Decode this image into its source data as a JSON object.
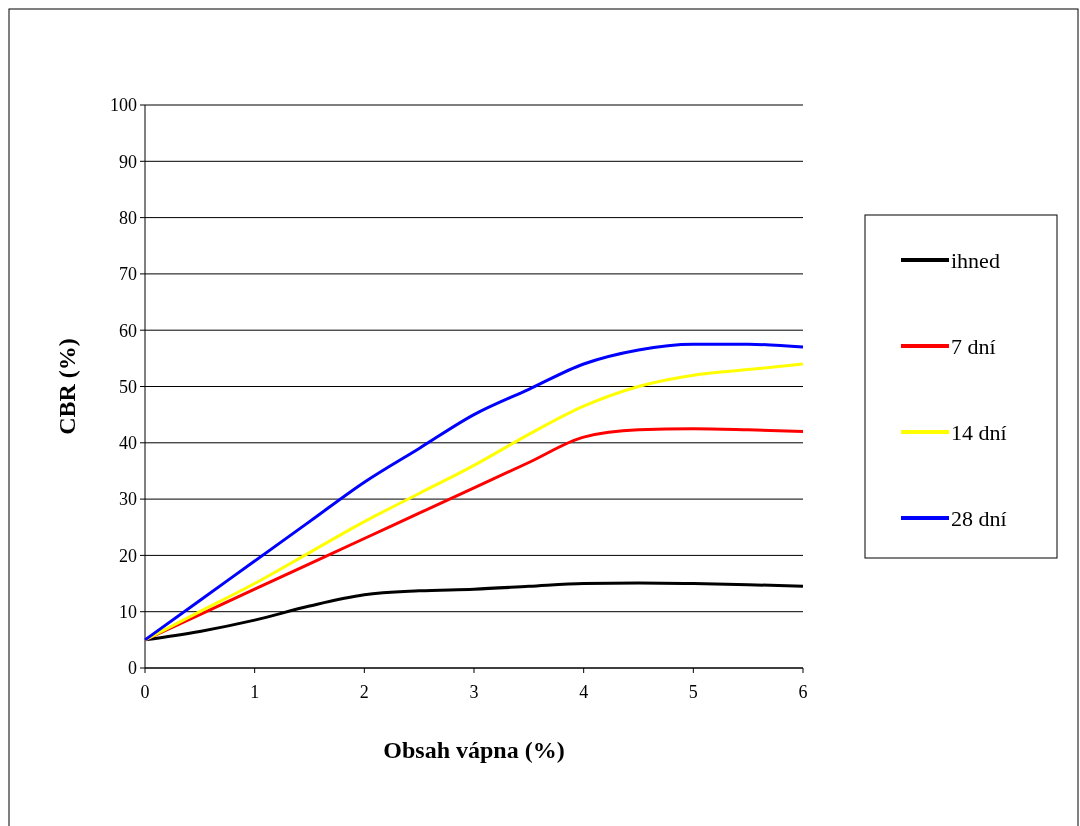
{
  "chart_data": {
    "type": "line",
    "xlabel": "Obsah vápna (%)",
    "ylabel": "CBR (%)",
    "x": [
      0,
      0.5,
      1,
      1.5,
      2,
      2.5,
      3,
      3.5,
      4,
      4.5,
      5,
      5.5,
      6
    ],
    "series": [
      {
        "name": "ihned",
        "color": "#000000",
        "values": [
          5,
          6.5,
          8.5,
          11,
          13,
          13.7,
          14,
          14.5,
          15,
          15.1,
          15,
          14.8,
          14.5
        ]
      },
      {
        "name": "7 dní",
        "color": "#ff0000",
        "values": [
          5,
          9.5,
          14,
          18.5,
          23,
          27.5,
          32,
          36.5,
          41,
          42.3,
          42.5,
          42.3,
          42
        ]
      },
      {
        "name": "14 dní",
        "color": "#ffff00",
        "values": [
          5,
          10,
          15,
          20.5,
          26,
          31,
          36,
          41.5,
          46.5,
          50,
          52,
          53,
          54
        ]
      },
      {
        "name": "28 dní",
        "color": "#0000ff",
        "values": [
          5,
          12,
          19,
          26,
          33,
          39,
          45,
          49.5,
          54,
          56.5,
          57.5,
          57.5,
          57
        ]
      }
    ],
    "xlim": [
      0,
      6
    ],
    "xticks": [
      0,
      1,
      2,
      3,
      4,
      5,
      6
    ],
    "ylim": [
      0,
      100
    ],
    "yticks": [
      0,
      10,
      20,
      30,
      40,
      50,
      60,
      70,
      80,
      90,
      100
    ],
    "grid": "y",
    "legend": "right",
    "marker": "none",
    "line_style": "solid"
  }
}
